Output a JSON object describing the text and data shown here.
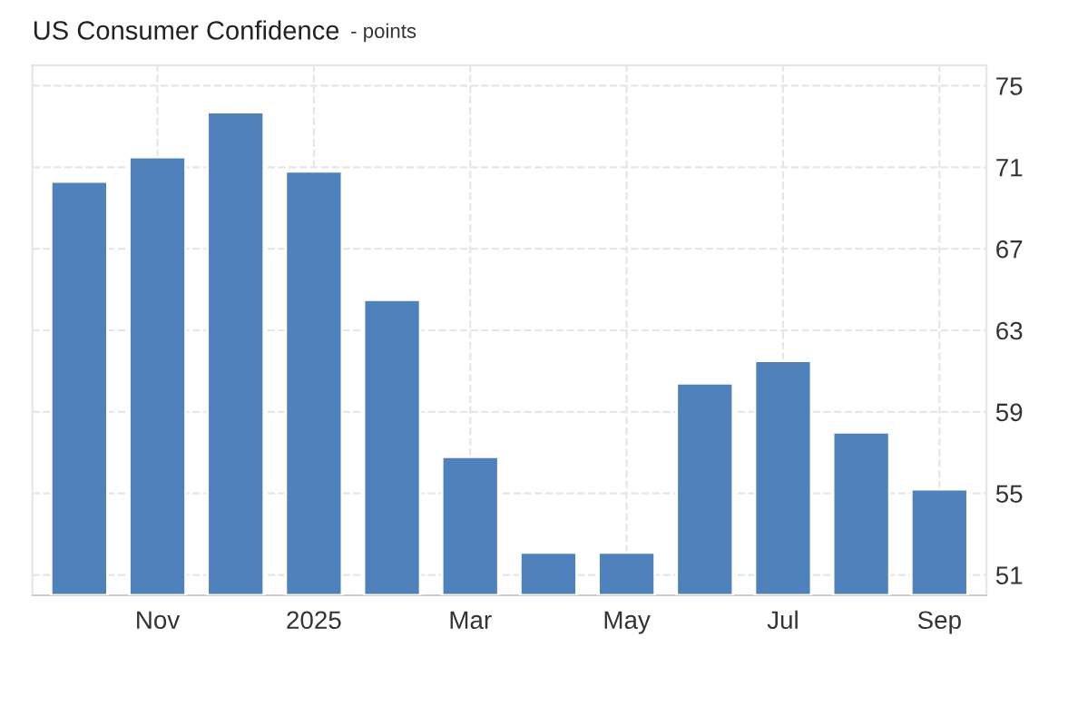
{
  "chart_data": {
    "type": "bar",
    "title": "US Consumer Confidence",
    "subtitle": "- points",
    "categories": [
      null,
      "Nov",
      null,
      "2025",
      null,
      "Mar",
      null,
      "May",
      null,
      "Jul",
      null,
      "Sep"
    ],
    "values": [
      70.3,
      71.5,
      73.7,
      70.8,
      64.5,
      56.8,
      52.1,
      52.1,
      60.4,
      61.5,
      58.0,
      55.2
    ],
    "color": "#4f81bd",
    "ylim": [
      50,
      76
    ],
    "yticks": [
      51,
      55,
      59,
      63,
      67,
      71,
      75
    ],
    "grid": true
  }
}
